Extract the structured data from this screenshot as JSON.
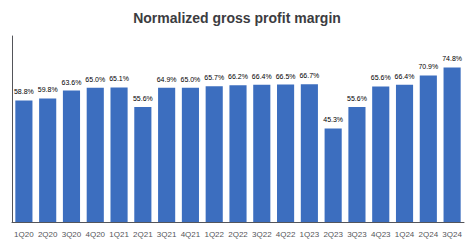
{
  "chart_data": {
    "type": "bar",
    "title": "Normalized gross profit margin",
    "categories": [
      "1Q20",
      "2Q20",
      "3Q20",
      "4Q20",
      "1Q21",
      "2Q21",
      "3Q21",
      "4Q21",
      "1Q22",
      "2Q22",
      "3Q22",
      "4Q22",
      "1Q23",
      "2Q23",
      "3Q23",
      "4Q23",
      "1Q24",
      "2Q24",
      "3Q24"
    ],
    "values": [
      58.8,
      59.8,
      63.6,
      65.0,
      65.1,
      55.6,
      64.9,
      65.0,
      65.7,
      66.2,
      66.4,
      66.5,
      66.7,
      45.3,
      55.6,
      65.6,
      66.4,
      70.9,
      74.8
    ],
    "value_labels": [
      "58.8%",
      "59.8%",
      "63.6%",
      "65.0%",
      "65.1%",
      "55.6%",
      "64.9%",
      "65.0%",
      "65.7%",
      "66.2%",
      "66.4%",
      "66.5%",
      "66.7%",
      "45.3%",
      "55.6%",
      "65.6%",
      "66.4%",
      "70.9%",
      "74.8%"
    ],
    "color": "#3c6ebf",
    "ylim": [
      0,
      90
    ],
    "data_labels": true,
    "tick_labels": "x",
    "grid": false
  }
}
